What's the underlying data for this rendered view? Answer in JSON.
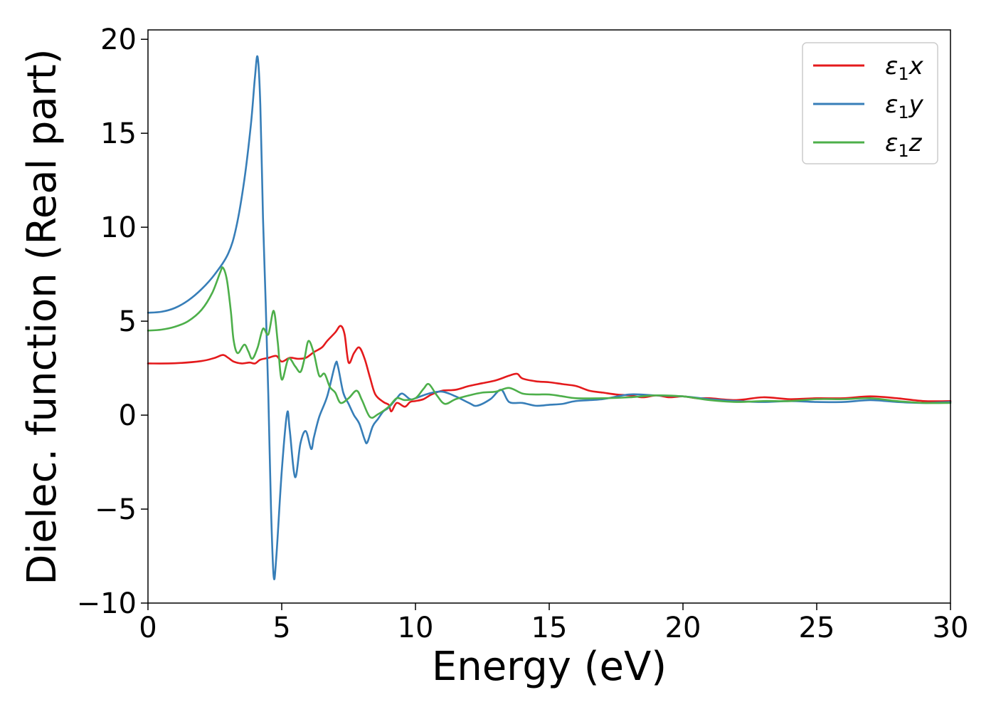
{
  "chart_data": {
    "type": "line",
    "title": "",
    "xlabel": "Energy (eV)",
    "ylabel": "Dielec. function (Real part)",
    "xlim": [
      0,
      30
    ],
    "ylim": [
      -10,
      20.5
    ],
    "xticks": [
      0,
      5,
      10,
      15,
      20,
      25,
      30
    ],
    "yticks": [
      -10,
      -5,
      0,
      5,
      10,
      15,
      20
    ],
    "xtick_labels": [
      "0",
      "5",
      "10",
      "15",
      "20",
      "25",
      "30"
    ],
    "ytick_labels": [
      "−10",
      "−5",
      "0",
      "5",
      "10",
      "15",
      "20"
    ],
    "grid": false,
    "legend_position": "top-right",
    "series": [
      {
        "name": "ε₁x",
        "color": "#e41a1c",
        "points": [
          [
            0,
            2.75
          ],
          [
            1,
            2.76
          ],
          [
            2,
            2.88
          ],
          [
            2.5,
            3.05
          ],
          [
            2.8,
            3.2
          ],
          [
            3.0,
            3.05
          ],
          [
            3.2,
            2.85
          ],
          [
            3.5,
            2.75
          ],
          [
            3.8,
            2.8
          ],
          [
            4.0,
            2.75
          ],
          [
            4.2,
            2.95
          ],
          [
            4.5,
            3.05
          ],
          [
            4.8,
            3.15
          ],
          [
            5.0,
            2.85
          ],
          [
            5.3,
            3.05
          ],
          [
            5.6,
            3.0
          ],
          [
            5.9,
            3.05
          ],
          [
            6.2,
            3.35
          ],
          [
            6.5,
            3.6
          ],
          [
            6.7,
            3.95
          ],
          [
            7.0,
            4.4
          ],
          [
            7.2,
            4.75
          ],
          [
            7.35,
            4.3
          ],
          [
            7.5,
            2.8
          ],
          [
            7.7,
            3.3
          ],
          [
            7.9,
            3.6
          ],
          [
            8.1,
            3.0
          ],
          [
            8.3,
            2.0
          ],
          [
            8.5,
            1.1
          ],
          [
            8.8,
            0.7
          ],
          [
            9.0,
            0.55
          ],
          [
            9.1,
            0.2
          ],
          [
            9.3,
            0.65
          ],
          [
            9.6,
            0.45
          ],
          [
            9.8,
            0.7
          ],
          [
            10.0,
            0.75
          ],
          [
            10.3,
            0.85
          ],
          [
            10.6,
            1.1
          ],
          [
            11.0,
            1.3
          ],
          [
            11.5,
            1.35
          ],
          [
            12.0,
            1.55
          ],
          [
            12.5,
            1.7
          ],
          [
            13.0,
            1.85
          ],
          [
            13.5,
            2.1
          ],
          [
            13.8,
            2.2
          ],
          [
            14.0,
            1.95
          ],
          [
            14.5,
            1.8
          ],
          [
            15.0,
            1.75
          ],
          [
            15.5,
            1.65
          ],
          [
            16.0,
            1.55
          ],
          [
            16.5,
            1.3
          ],
          [
            17.0,
            1.2
          ],
          [
            17.5,
            1.1
          ],
          [
            18.0,
            1.05
          ],
          [
            18.5,
            0.95
          ],
          [
            19.0,
            1.05
          ],
          [
            19.5,
            0.95
          ],
          [
            20.0,
            1.0
          ],
          [
            20.5,
            0.9
          ],
          [
            21.0,
            0.9
          ],
          [
            22.0,
            0.8
          ],
          [
            23.0,
            0.95
          ],
          [
            24.0,
            0.85
          ],
          [
            25.0,
            0.9
          ],
          [
            26.0,
            0.9
          ],
          [
            27.0,
            1.0
          ],
          [
            28.0,
            0.9
          ],
          [
            29.0,
            0.75
          ],
          [
            30.0,
            0.75
          ]
        ]
      },
      {
        "name": "ε₁y",
        "color": "#377eb8",
        "points": [
          [
            0,
            5.45
          ],
          [
            0.5,
            5.5
          ],
          [
            1.0,
            5.7
          ],
          [
            1.5,
            6.1
          ],
          [
            2.0,
            6.7
          ],
          [
            2.5,
            7.5
          ],
          [
            3.0,
            8.6
          ],
          [
            3.3,
            10.0
          ],
          [
            3.6,
            12.5
          ],
          [
            3.85,
            15.5
          ],
          [
            4.0,
            18.0
          ],
          [
            4.1,
            19.05
          ],
          [
            4.2,
            16.5
          ],
          [
            4.3,
            10.5
          ],
          [
            4.4,
            6.0
          ],
          [
            4.5,
            1.0
          ],
          [
            4.6,
            -5.0
          ],
          [
            4.7,
            -8.6
          ],
          [
            4.8,
            -7.5
          ],
          [
            5.0,
            -3.0
          ],
          [
            5.2,
            0.1
          ],
          [
            5.3,
            -0.8
          ],
          [
            5.5,
            -3.3
          ],
          [
            5.7,
            -1.5
          ],
          [
            5.9,
            -0.85
          ],
          [
            6.1,
            -1.8
          ],
          [
            6.2,
            -1.2
          ],
          [
            6.4,
            -0.1
          ],
          [
            6.7,
            1.0
          ],
          [
            7.0,
            2.7
          ],
          [
            7.1,
            2.6
          ],
          [
            7.3,
            1.2
          ],
          [
            7.5,
            0.6
          ],
          [
            7.7,
            0.0
          ],
          [
            7.9,
            -0.45
          ],
          [
            8.1,
            -1.3
          ],
          [
            8.2,
            -1.45
          ],
          [
            8.4,
            -0.6
          ],
          [
            8.6,
            -0.2
          ],
          [
            8.8,
            0.2
          ],
          [
            9.0,
            0.4
          ],
          [
            9.3,
            0.9
          ],
          [
            9.5,
            1.15
          ],
          [
            9.8,
            0.85
          ],
          [
            10.0,
            0.9
          ],
          [
            10.5,
            1.15
          ],
          [
            11.0,
            1.25
          ],
          [
            11.5,
            1.0
          ],
          [
            12.0,
            0.65
          ],
          [
            12.3,
            0.5
          ],
          [
            12.8,
            0.85
          ],
          [
            13.2,
            1.35
          ],
          [
            13.5,
            0.7
          ],
          [
            14.0,
            0.65
          ],
          [
            14.5,
            0.5
          ],
          [
            15.0,
            0.55
          ],
          [
            15.5,
            0.6
          ],
          [
            16.0,
            0.75
          ],
          [
            17.0,
            0.85
          ],
          [
            18.0,
            1.1
          ],
          [
            19.0,
            1.05
          ],
          [
            20.0,
            1.0
          ],
          [
            21.0,
            0.85
          ],
          [
            22.0,
            0.75
          ],
          [
            23.0,
            0.7
          ],
          [
            24.0,
            0.75
          ],
          [
            25.0,
            0.7
          ],
          [
            26.0,
            0.7
          ],
          [
            27.0,
            0.8
          ],
          [
            28.0,
            0.7
          ],
          [
            29.0,
            0.65
          ],
          [
            30.0,
            0.7
          ]
        ]
      },
      {
        "name": "ε₁z",
        "color": "#4daf4a",
        "points": [
          [
            0,
            4.5
          ],
          [
            0.5,
            4.55
          ],
          [
            1.0,
            4.7
          ],
          [
            1.5,
            5.0
          ],
          [
            2.0,
            5.6
          ],
          [
            2.4,
            6.5
          ],
          [
            2.7,
            7.6
          ],
          [
            2.8,
            7.85
          ],
          [
            2.95,
            7.2
          ],
          [
            3.1,
            5.5
          ],
          [
            3.2,
            4.0
          ],
          [
            3.35,
            3.3
          ],
          [
            3.6,
            3.75
          ],
          [
            3.75,
            3.4
          ],
          [
            3.9,
            3.0
          ],
          [
            4.1,
            3.6
          ],
          [
            4.3,
            4.6
          ],
          [
            4.5,
            4.3
          ],
          [
            4.7,
            5.55
          ],
          [
            4.85,
            3.9
          ],
          [
            5.0,
            1.9
          ],
          [
            5.25,
            3.0
          ],
          [
            5.5,
            2.6
          ],
          [
            5.7,
            2.3
          ],
          [
            5.85,
            3.0
          ],
          [
            6.0,
            3.95
          ],
          [
            6.2,
            3.3
          ],
          [
            6.4,
            2.1
          ],
          [
            6.6,
            2.2
          ],
          [
            6.8,
            1.5
          ],
          [
            7.0,
            1.2
          ],
          [
            7.2,
            0.65
          ],
          [
            7.5,
            0.9
          ],
          [
            7.8,
            1.3
          ],
          [
            8.0,
            0.8
          ],
          [
            8.3,
            -0.1
          ],
          [
            8.6,
            0.05
          ],
          [
            9.0,
            0.45
          ],
          [
            9.3,
            0.9
          ],
          [
            9.6,
            0.8
          ],
          [
            10.0,
            0.9
          ],
          [
            10.3,
            1.4
          ],
          [
            10.5,
            1.65
          ],
          [
            10.8,
            1.05
          ],
          [
            11.1,
            0.6
          ],
          [
            11.5,
            0.85
          ],
          [
            12.0,
            1.05
          ],
          [
            12.5,
            1.2
          ],
          [
            13.0,
            1.25
          ],
          [
            13.5,
            1.45
          ],
          [
            14.0,
            1.15
          ],
          [
            14.5,
            1.1
          ],
          [
            15.0,
            1.1
          ],
          [
            15.5,
            1.0
          ],
          [
            16.0,
            0.9
          ],
          [
            17.0,
            0.9
          ],
          [
            18.0,
            0.95
          ],
          [
            19.0,
            1.05
          ],
          [
            20.0,
            1.0
          ],
          [
            21.0,
            0.8
          ],
          [
            22.0,
            0.7
          ],
          [
            23.0,
            0.75
          ],
          [
            24.0,
            0.75
          ],
          [
            25.0,
            0.85
          ],
          [
            26.0,
            0.85
          ],
          [
            27.0,
            0.9
          ],
          [
            28.0,
            0.75
          ],
          [
            29.0,
            0.65
          ],
          [
            30.0,
            0.65
          ]
        ]
      }
    ]
  },
  "legend": {
    "entries": [
      {
        "base": "ε",
        "sub": "1",
        "axis": "x"
      },
      {
        "base": "ε",
        "sub": "1",
        "axis": "y"
      },
      {
        "base": "ε",
        "sub": "1",
        "axis": "z"
      }
    ]
  }
}
